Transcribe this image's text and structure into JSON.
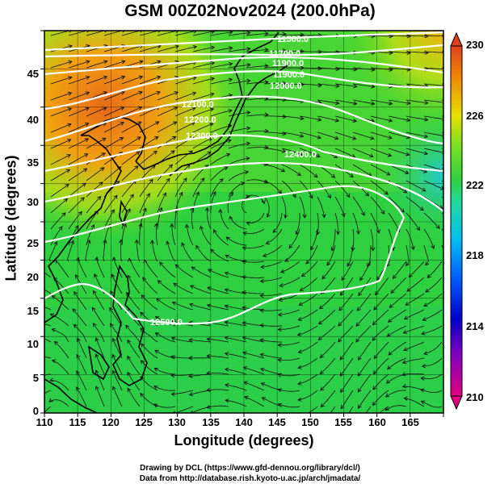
{
  "title": "GSM 00Z02Nov2024 (200.0hPa)",
  "x_axis": {
    "label": "Longitude (degrees)",
    "ticks": [
      "110",
      "115",
      "120",
      "125",
      "130",
      "135",
      "140",
      "145",
      "150",
      "155",
      "160",
      "165"
    ],
    "range": [
      110,
      170
    ]
  },
  "y_axis": {
    "label": "Latitude  (degrees)",
    "ticks": [
      "0",
      "5",
      "10",
      "15",
      "20",
      "25",
      "30",
      "35",
      "40",
      "45"
    ],
    "range": [
      0,
      50
    ]
  },
  "colorbar": {
    "ticks": [
      "230",
      "226",
      "222",
      "218",
      "214",
      "210"
    ],
    "range": [
      210,
      230
    ],
    "colors": [
      "#e0007f",
      "#8000c0",
      "#0000c8",
      "#0060ff",
      "#00c0f0",
      "#20d8a0",
      "#30d040",
      "#80e020",
      "#e8e000",
      "#f09000",
      "#e04020"
    ]
  },
  "contours": {
    "labels": [
      "11500.0",
      "11700.0",
      "11900.0",
      "11900.0",
      "12000.0",
      "12100.0",
      "12200.0",
      "12300.0",
      "12400.0",
      "12500.0"
    ]
  },
  "credits": {
    "line1": "Drawing by DCL (https://www.gfd-dennou.org/library/dcl/)",
    "line2": "Data from http://database.rish.kyoto-u.ac.jp/arch/jmadata/"
  }
}
